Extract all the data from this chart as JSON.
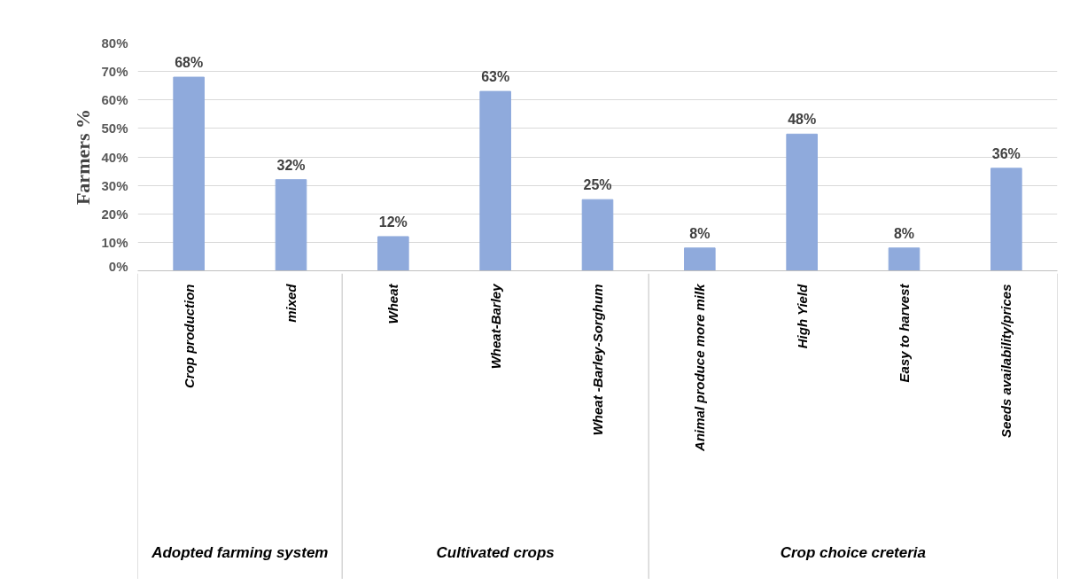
{
  "chart_data": {
    "type": "bar",
    "ylabel": "Farmers %",
    "categories": [
      "Crop production",
      "mixed",
      "Wheat",
      "Wheat-Barley",
      "Wheat -Barley-Sorghum",
      "Animal produce more milk",
      "High Yield",
      "Easy to harvest",
      "Seeds availability/prices"
    ],
    "values": [
      68,
      32,
      12,
      63,
      25,
      8,
      48,
      8,
      36
    ],
    "value_labels": [
      "68%",
      "32%",
      "12%",
      "63%",
      "25%",
      "8%",
      "48%",
      "8%",
      "36%"
    ],
    "color": "#8faadc",
    "ylim": [
      0,
      80
    ],
    "yticks": [
      {
        "value": 0,
        "label": "0%"
      },
      {
        "value": 10,
        "label": "10%"
      },
      {
        "value": 20,
        "label": "20%"
      },
      {
        "value": 30,
        "label": "30%"
      },
      {
        "value": 40,
        "label": "40%"
      },
      {
        "value": 50,
        "label": "50%"
      },
      {
        "value": 60,
        "label": "60%"
      },
      {
        "value": 70,
        "label": "70%"
      },
      {
        "value": 80,
        "label": "80%"
      }
    ],
    "grid": "y",
    "annotations": [
      "Adopted farming system",
      "Cultivated crops",
      "Crop choice creteria"
    ]
  }
}
